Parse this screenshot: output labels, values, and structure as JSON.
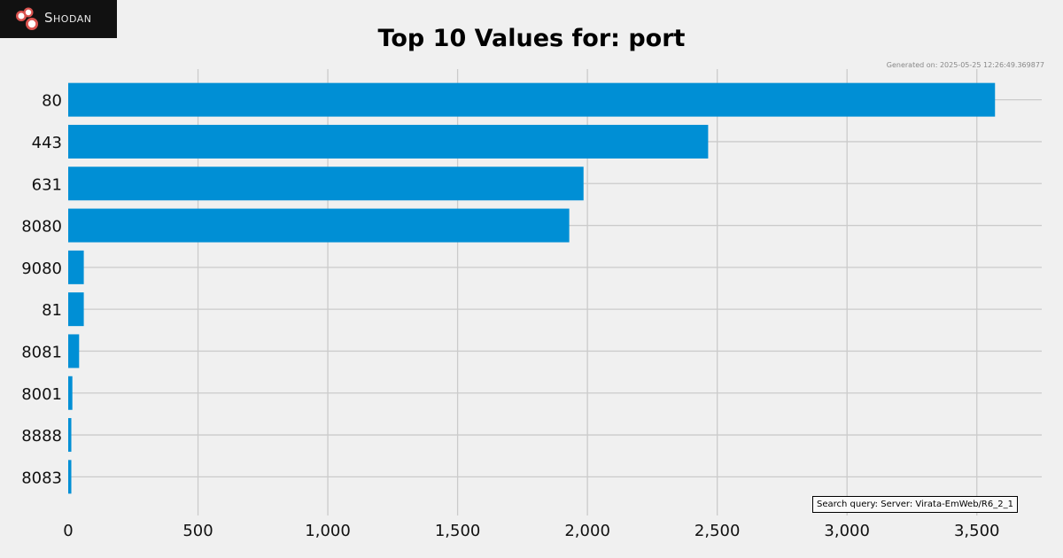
{
  "brand": {
    "name": "Shodan",
    "logo_icon": "shodan-logo-icon"
  },
  "header": {
    "generated": "Generated on: 2025-05-25 12:26:49.369877",
    "query": "Search query: Server: Virata-EmWeb/R6_2_1"
  },
  "chart_data": {
    "type": "bar",
    "orientation": "horizontal",
    "title": "Top 10 Values for: port",
    "categories": [
      "80",
      "443",
      "631",
      "8080",
      "9080",
      "81",
      "8081",
      "8001",
      "8888",
      "8083"
    ],
    "values": [
      3570,
      2465,
      1985,
      1930,
      60,
      60,
      42,
      16,
      12,
      12
    ],
    "xlim": [
      0,
      3750
    ],
    "xticks": [
      0,
      500,
      1000,
      1500,
      2000,
      2500,
      3000,
      3500
    ],
    "xtick_labels": [
      "0",
      "500",
      "1,000",
      "1,500",
      "2,000",
      "2,500",
      "3,000",
      "3,500"
    ],
    "xlabel": "",
    "ylabel": "",
    "grid": true,
    "bar_color": "#008fd5",
    "grid_color": "#cbcbcb"
  }
}
